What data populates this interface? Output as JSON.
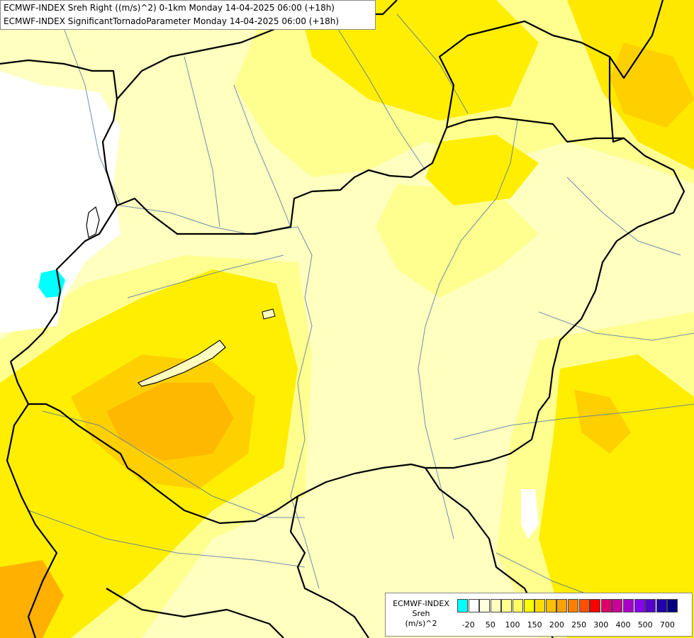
{
  "title": {
    "line1": "ECMWF-INDEX Sreh Right ((m/s)^2) 0-1km Monday 14-04-2025 06:00 (+18h)",
    "line2": "ECMWF-INDEX SignificantTornadoParameter Monday 14-04-2025 06:00 (+18h)"
  },
  "legend": {
    "line1": "ECMWF-INDEX",
    "line2": "Sreh",
    "line3": "(m/s)^2",
    "colors": [
      "#00ffff",
      "#ffffff",
      "#ffffe0",
      "#ffffc0",
      "#ffff90",
      "#ffff60",
      "#ffff00",
      "#ffdd00",
      "#ffc000",
      "#ffa000",
      "#ff8000",
      "#ff5000",
      "#ff0000",
      "#e0006a",
      "#cc0099",
      "#aa00cc",
      "#8800ee",
      "#5500cc",
      "#2200aa",
      "#000080"
    ],
    "ticks": [
      "-20",
      "50",
      "100",
      "150",
      "200",
      "250",
      "300",
      "400",
      "500",
      "700"
    ]
  },
  "colors": {
    "zero": "#ffffff",
    "pale": "#ffffc0",
    "light": "#ffff90",
    "yellow": "#ffff00",
    "gold": "#ffd000",
    "orange": "#ffb000",
    "cyan": "#00ffff"
  }
}
